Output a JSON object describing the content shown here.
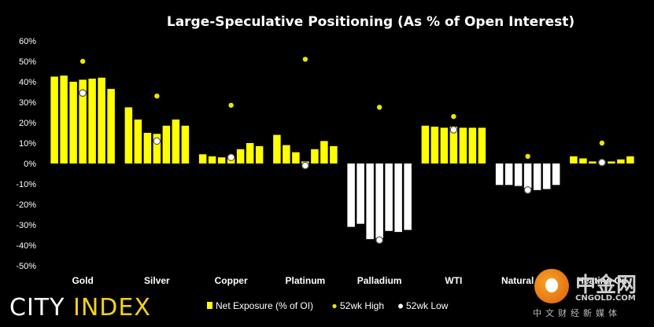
{
  "chart_data": {
    "type": "bar",
    "title": "Large-Speculative Positioning (As % of Open Interest)",
    "categories": [
      "Gold",
      "Silver",
      "Copper",
      "Platinum",
      "Palladium",
      "WTI",
      "Natural Gas",
      "Heating Oil"
    ],
    "yticks": [
      "60%",
      "50%",
      "40%",
      "30%",
      "20%",
      "10%",
      "0%",
      "-10%",
      "-20%",
      "-30%",
      "-40%",
      "-50%"
    ],
    "ylim": [
      -50,
      60
    ],
    "grid": false,
    "legend_position": "bottom",
    "series": [
      {
        "name": "Net Exposure (% of OI)",
        "type": "bar",
        "values": [
          [
            42.5,
            43,
            40,
            41,
            41.5,
            42,
            36.5
          ],
          [
            27.5,
            21.5,
            15,
            14.5,
            18.5,
            21.5,
            18.5
          ],
          [
            4.5,
            3.5,
            3,
            3.5,
            7,
            10,
            8.5
          ],
          [
            14,
            9,
            5.5,
            1,
            7,
            11,
            8.5
          ],
          [
            -31,
            -29.5,
            -37,
            -36.5,
            -33,
            -33.5,
            -32.5
          ],
          [
            18.5,
            18,
            17.5,
            18,
            17.5,
            17.5,
            17.5
          ],
          [
            -10.5,
            -10.5,
            -11,
            -12,
            -13,
            -12.5,
            -10.5
          ],
          [
            3.5,
            2.5,
            1,
            0.5,
            1,
            2,
            3.5
          ]
        ]
      },
      {
        "name": "52wk High",
        "type": "marker",
        "values": [
          50,
          33,
          28.5,
          51,
          27.5,
          23,
          3.5,
          10
        ]
      },
      {
        "name": "52wk Low",
        "type": "marker",
        "values": [
          34.5,
          11,
          3,
          -1,
          -37.5,
          16.5,
          -13,
          0.5
        ]
      }
    ],
    "colors": {
      "background": "#000000",
      "bar_positive": "#ffff00",
      "bar_negative": "#ffffff",
      "high_marker": "#e8e800",
      "low_marker": "#ffffff",
      "text": "#ffffff"
    }
  },
  "branding": {
    "logo_text_main": "CITY ",
    "logo_text_accent": "INDEX",
    "watermark_cn": "中金网",
    "watermark_url": "CNGOLD.COM",
    "watermark_sub": "中文财经新媒体"
  }
}
